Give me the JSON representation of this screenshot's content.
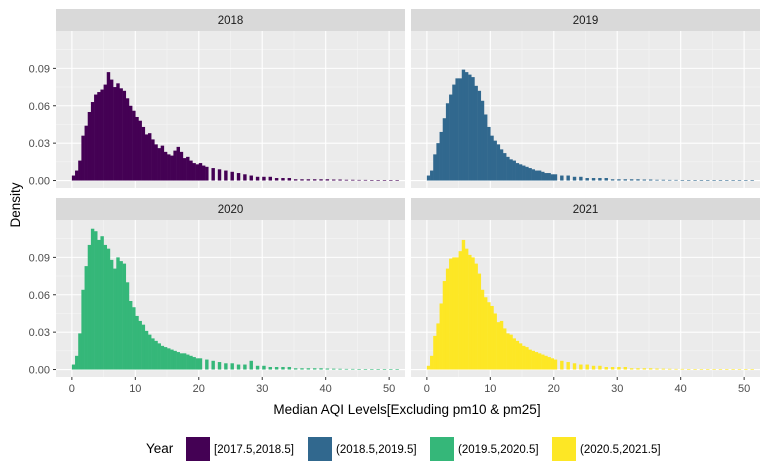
{
  "chart_data": {
    "type": "histogram",
    "xlabel": "Median AQI Levels[Excluding pm10 & pm25]",
    "ylabel": "Density",
    "x_ticks": [
      0,
      10,
      20,
      30,
      40,
      50
    ],
    "y_ticks": [
      0.0,
      0.03,
      0.06,
      0.09
    ],
    "y_tick_labels": [
      "0.00",
      "0.03",
      "0.06",
      "0.09"
    ],
    "xlim": [
      -2.5,
      52.5
    ],
    "ylim": [
      -0.006,
      0.12
    ],
    "bin_width": 0.5,
    "grid": true,
    "facet_layout": "2x2",
    "legend_position": "bottom",
    "legend": {
      "title": "Year",
      "entries": [
        {
          "label": "[2017.5,2018.5]",
          "color": "#440154"
        },
        {
          "label": "(2018.5,2019.5]",
          "color": "#31688E"
        },
        {
          "label": "(2019.5,2020.5]",
          "color": "#35B779"
        },
        {
          "label": "(2020.5,2021.5]",
          "color": "#FDE725"
        }
      ]
    },
    "panels": [
      {
        "title": "2018",
        "color": "#440154",
        "points": [
          [
            0,
            0.004
          ],
          [
            0.5,
            0.008
          ],
          [
            1,
            0.016
          ],
          [
            1.5,
            0.036
          ],
          [
            2,
            0.044
          ],
          [
            2.5,
            0.055
          ],
          [
            3,
            0.063
          ],
          [
            3.5,
            0.069
          ],
          [
            4,
            0.071
          ],
          [
            4.5,
            0.073
          ],
          [
            5,
            0.077
          ],
          [
            5.5,
            0.087
          ],
          [
            6,
            0.081
          ],
          [
            6.5,
            0.075
          ],
          [
            7,
            0.078
          ],
          [
            7.5,
            0.074
          ],
          [
            8,
            0.072
          ],
          [
            8.5,
            0.066
          ],
          [
            9,
            0.06
          ],
          [
            9.5,
            0.056
          ],
          [
            10,
            0.051
          ],
          [
            10.5,
            0.048
          ],
          [
            11,
            0.043
          ],
          [
            11.5,
            0.037
          ],
          [
            12,
            0.038
          ],
          [
            12.5,
            0.033
          ],
          [
            13,
            0.029
          ],
          [
            13.5,
            0.026
          ],
          [
            14,
            0.028
          ],
          [
            14.5,
            0.023
          ],
          [
            15,
            0.021
          ],
          [
            15.5,
            0.02
          ],
          [
            16,
            0.024
          ],
          [
            16.5,
            0.027
          ],
          [
            17,
            0.023
          ],
          [
            17.5,
            0.018
          ],
          [
            18,
            0.019
          ],
          [
            18.5,
            0.016
          ],
          [
            19,
            0.014
          ],
          [
            19.5,
            0.013
          ],
          [
            20,
            0.014
          ],
          [
            20.5,
            0.012
          ],
          [
            21,
            0.011
          ],
          [
            22,
            0.01
          ],
          [
            23,
            0.009
          ],
          [
            24,
            0.008
          ],
          [
            25,
            0.007
          ],
          [
            26,
            0.006
          ],
          [
            27,
            0.005
          ],
          [
            28,
            0.004
          ],
          [
            29,
            0.003
          ],
          [
            30,
            0.003
          ],
          [
            31,
            0.003
          ],
          [
            32,
            0.002
          ],
          [
            33,
            0.002
          ],
          [
            34,
            0.002
          ],
          [
            35,
            0.001
          ],
          [
            36,
            0.001
          ],
          [
            37,
            0.001
          ],
          [
            38,
            0.001
          ],
          [
            39,
            0.001
          ],
          [
            40,
            0.001
          ],
          [
            41,
            0.0008
          ],
          [
            42,
            0.0008
          ],
          [
            43,
            0.0006
          ],
          [
            44,
            0.0006
          ],
          [
            45,
            0.0005
          ],
          [
            46,
            0.0005
          ],
          [
            47,
            0.0004
          ],
          [
            48,
            0.0004
          ],
          [
            49,
            0.0003
          ],
          [
            50,
            0.0003
          ],
          [
            51,
            0.0002
          ]
        ]
      },
      {
        "title": "2019",
        "color": "#31688E",
        "points": [
          [
            0,
            0.004
          ],
          [
            0.5,
            0.008
          ],
          [
            1,
            0.021
          ],
          [
            1.5,
            0.03
          ],
          [
            2,
            0.039
          ],
          [
            2.5,
            0.05
          ],
          [
            3,
            0.062
          ],
          [
            3.5,
            0.069
          ],
          [
            4,
            0.077
          ],
          [
            4.5,
            0.082
          ],
          [
            5,
            0.082
          ],
          [
            5.5,
            0.089
          ],
          [
            6,
            0.087
          ],
          [
            6.5,
            0.085
          ],
          [
            7,
            0.083
          ],
          [
            7.5,
            0.076
          ],
          [
            8,
            0.072
          ],
          [
            8.5,
            0.064
          ],
          [
            9,
            0.053
          ],
          [
            9.5,
            0.043
          ],
          [
            10,
            0.036
          ],
          [
            10.5,
            0.032
          ],
          [
            11,
            0.029
          ],
          [
            11.5,
            0.025
          ],
          [
            12,
            0.022
          ],
          [
            12.5,
            0.019
          ],
          [
            13,
            0.017
          ],
          [
            13.5,
            0.016
          ],
          [
            14,
            0.014
          ],
          [
            14.5,
            0.013
          ],
          [
            15,
            0.012
          ],
          [
            15.5,
            0.011
          ],
          [
            16,
            0.01
          ],
          [
            16.5,
            0.009
          ],
          [
            17,
            0.008
          ],
          [
            17.5,
            0.008
          ],
          [
            18,
            0.007
          ],
          [
            18.5,
            0.006
          ],
          [
            19,
            0.006
          ],
          [
            19.5,
            0.005
          ],
          [
            20,
            0.005
          ],
          [
            21,
            0.004
          ],
          [
            22,
            0.004
          ],
          [
            23,
            0.003
          ],
          [
            24,
            0.003
          ],
          [
            25,
            0.002
          ],
          [
            26,
            0.002
          ],
          [
            27,
            0.002
          ],
          [
            28,
            0.002
          ],
          [
            29,
            0.001
          ],
          [
            30,
            0.001
          ],
          [
            31,
            0.001
          ],
          [
            32,
            0.001
          ],
          [
            33,
            0.001
          ],
          [
            34,
            0.0008
          ],
          [
            35,
            0.0008
          ],
          [
            36,
            0.0006
          ],
          [
            37,
            0.0006
          ],
          [
            38,
            0.0005
          ],
          [
            39,
            0.0005
          ],
          [
            40,
            0.0004
          ],
          [
            41,
            0.0004
          ],
          [
            42,
            0.0003
          ],
          [
            43,
            0.0003
          ],
          [
            44,
            0.0003
          ],
          [
            45,
            0.0002
          ],
          [
            46,
            0.0002
          ],
          [
            47,
            0.0002
          ],
          [
            48,
            0.0002
          ],
          [
            49,
            0.0001
          ],
          [
            50,
            0.0001
          ],
          [
            51,
            0.0001
          ]
        ]
      },
      {
        "title": "2020",
        "color": "#35B779",
        "points": [
          [
            0,
            0.004
          ],
          [
            0.5,
            0.011
          ],
          [
            1,
            0.029
          ],
          [
            1.5,
            0.064
          ],
          [
            2,
            0.083
          ],
          [
            2.5,
            0.1
          ],
          [
            3,
            0.113
          ],
          [
            3.5,
            0.111
          ],
          [
            4,
            0.104
          ],
          [
            4.5,
            0.107
          ],
          [
            5,
            0.1
          ],
          [
            5.5,
            0.097
          ],
          [
            6,
            0.088
          ],
          [
            6.5,
            0.081
          ],
          [
            7,
            0.09
          ],
          [
            7.5,
            0.087
          ],
          [
            8,
            0.085
          ],
          [
            8.5,
            0.07
          ],
          [
            9,
            0.055
          ],
          [
            9.5,
            0.05
          ],
          [
            10,
            0.043
          ],
          [
            10.5,
            0.039
          ],
          [
            11,
            0.036
          ],
          [
            11.5,
            0.031
          ],
          [
            12,
            0.028
          ],
          [
            12.5,
            0.025
          ],
          [
            13,
            0.023
          ],
          [
            13.5,
            0.021
          ],
          [
            14,
            0.019
          ],
          [
            14.5,
            0.018
          ],
          [
            15,
            0.017
          ],
          [
            15.5,
            0.016
          ],
          [
            16,
            0.015
          ],
          [
            16.5,
            0.014
          ],
          [
            17,
            0.013
          ],
          [
            17.5,
            0.013
          ],
          [
            18,
            0.012
          ],
          [
            18.5,
            0.011
          ],
          [
            19,
            0.01
          ],
          [
            19.5,
            0.009
          ],
          [
            20,
            0.009
          ],
          [
            21,
            0.008
          ],
          [
            22,
            0.007
          ],
          [
            23,
            0.006
          ],
          [
            24,
            0.005
          ],
          [
            25,
            0.005
          ],
          [
            26,
            0.004
          ],
          [
            27,
            0.004
          ],
          [
            28,
            0.007
          ],
          [
            29,
            0.003
          ],
          [
            30,
            0.003
          ],
          [
            31,
            0.002
          ],
          [
            32,
            0.002
          ],
          [
            33,
            0.002
          ],
          [
            34,
            0.002
          ],
          [
            35,
            0.001
          ],
          [
            36,
            0.001
          ],
          [
            37,
            0.001
          ],
          [
            38,
            0.001
          ],
          [
            39,
            0.001
          ],
          [
            40,
            0.0008
          ],
          [
            41,
            0.0007
          ],
          [
            42,
            0.0006
          ],
          [
            43,
            0.0005
          ],
          [
            44,
            0.0005
          ],
          [
            45,
            0.0004
          ],
          [
            46,
            0.0004
          ],
          [
            47,
            0.0003
          ],
          [
            48,
            0.0003
          ],
          [
            49,
            0.0003
          ],
          [
            50,
            0.0002
          ],
          [
            51,
            0.0002
          ]
        ]
      },
      {
        "title": "2021",
        "color": "#FDE725",
        "points": [
          [
            0,
            0.003
          ],
          [
            0.5,
            0.011
          ],
          [
            1,
            0.027
          ],
          [
            1.5,
            0.037
          ],
          [
            2,
            0.053
          ],
          [
            2.5,
            0.071
          ],
          [
            3,
            0.081
          ],
          [
            3.5,
            0.089
          ],
          [
            4,
            0.09
          ],
          [
            4.5,
            0.09
          ],
          [
            5,
            0.095
          ],
          [
            5.5,
            0.104
          ],
          [
            6,
            0.097
          ],
          [
            6.5,
            0.092
          ],
          [
            7,
            0.09
          ],
          [
            7.5,
            0.085
          ],
          [
            8,
            0.077
          ],
          [
            8.5,
            0.064
          ],
          [
            9,
            0.058
          ],
          [
            9.5,
            0.054
          ],
          [
            10,
            0.051
          ],
          [
            10.5,
            0.045
          ],
          [
            11,
            0.038
          ],
          [
            11.5,
            0.039
          ],
          [
            12,
            0.033
          ],
          [
            12.5,
            0.029
          ],
          [
            13,
            0.028
          ],
          [
            13.5,
            0.025
          ],
          [
            14,
            0.023
          ],
          [
            14.5,
            0.021
          ],
          [
            15,
            0.019
          ],
          [
            15.5,
            0.018
          ],
          [
            16,
            0.016
          ],
          [
            16.5,
            0.015
          ],
          [
            17,
            0.014
          ],
          [
            17.5,
            0.013
          ],
          [
            18,
            0.012
          ],
          [
            18.5,
            0.011
          ],
          [
            19,
            0.01
          ],
          [
            19.5,
            0.009
          ],
          [
            20,
            0.008
          ],
          [
            21,
            0.007
          ],
          [
            22,
            0.006
          ],
          [
            23,
            0.005
          ],
          [
            24,
            0.004
          ],
          [
            25,
            0.004
          ],
          [
            26,
            0.003
          ],
          [
            27,
            0.003
          ],
          [
            28,
            0.002
          ],
          [
            29,
            0.002
          ],
          [
            30,
            0.002
          ],
          [
            31,
            0.002
          ],
          [
            32,
            0.001
          ],
          [
            33,
            0.001
          ],
          [
            34,
            0.001
          ],
          [
            35,
            0.001
          ],
          [
            36,
            0.0008
          ],
          [
            37,
            0.0007
          ],
          [
            38,
            0.0006
          ],
          [
            39,
            0.0005
          ],
          [
            40,
            0.0005
          ],
          [
            41,
            0.0004
          ],
          [
            42,
            0.0004
          ],
          [
            43,
            0.0003
          ],
          [
            44,
            0.0003
          ],
          [
            45,
            0.0003
          ],
          [
            46,
            0.0002
          ],
          [
            47,
            0.0002
          ],
          [
            48,
            0.0002
          ],
          [
            49,
            0.0002
          ],
          [
            50,
            0.0001
          ],
          [
            51,
            0.0001
          ]
        ]
      }
    ]
  }
}
